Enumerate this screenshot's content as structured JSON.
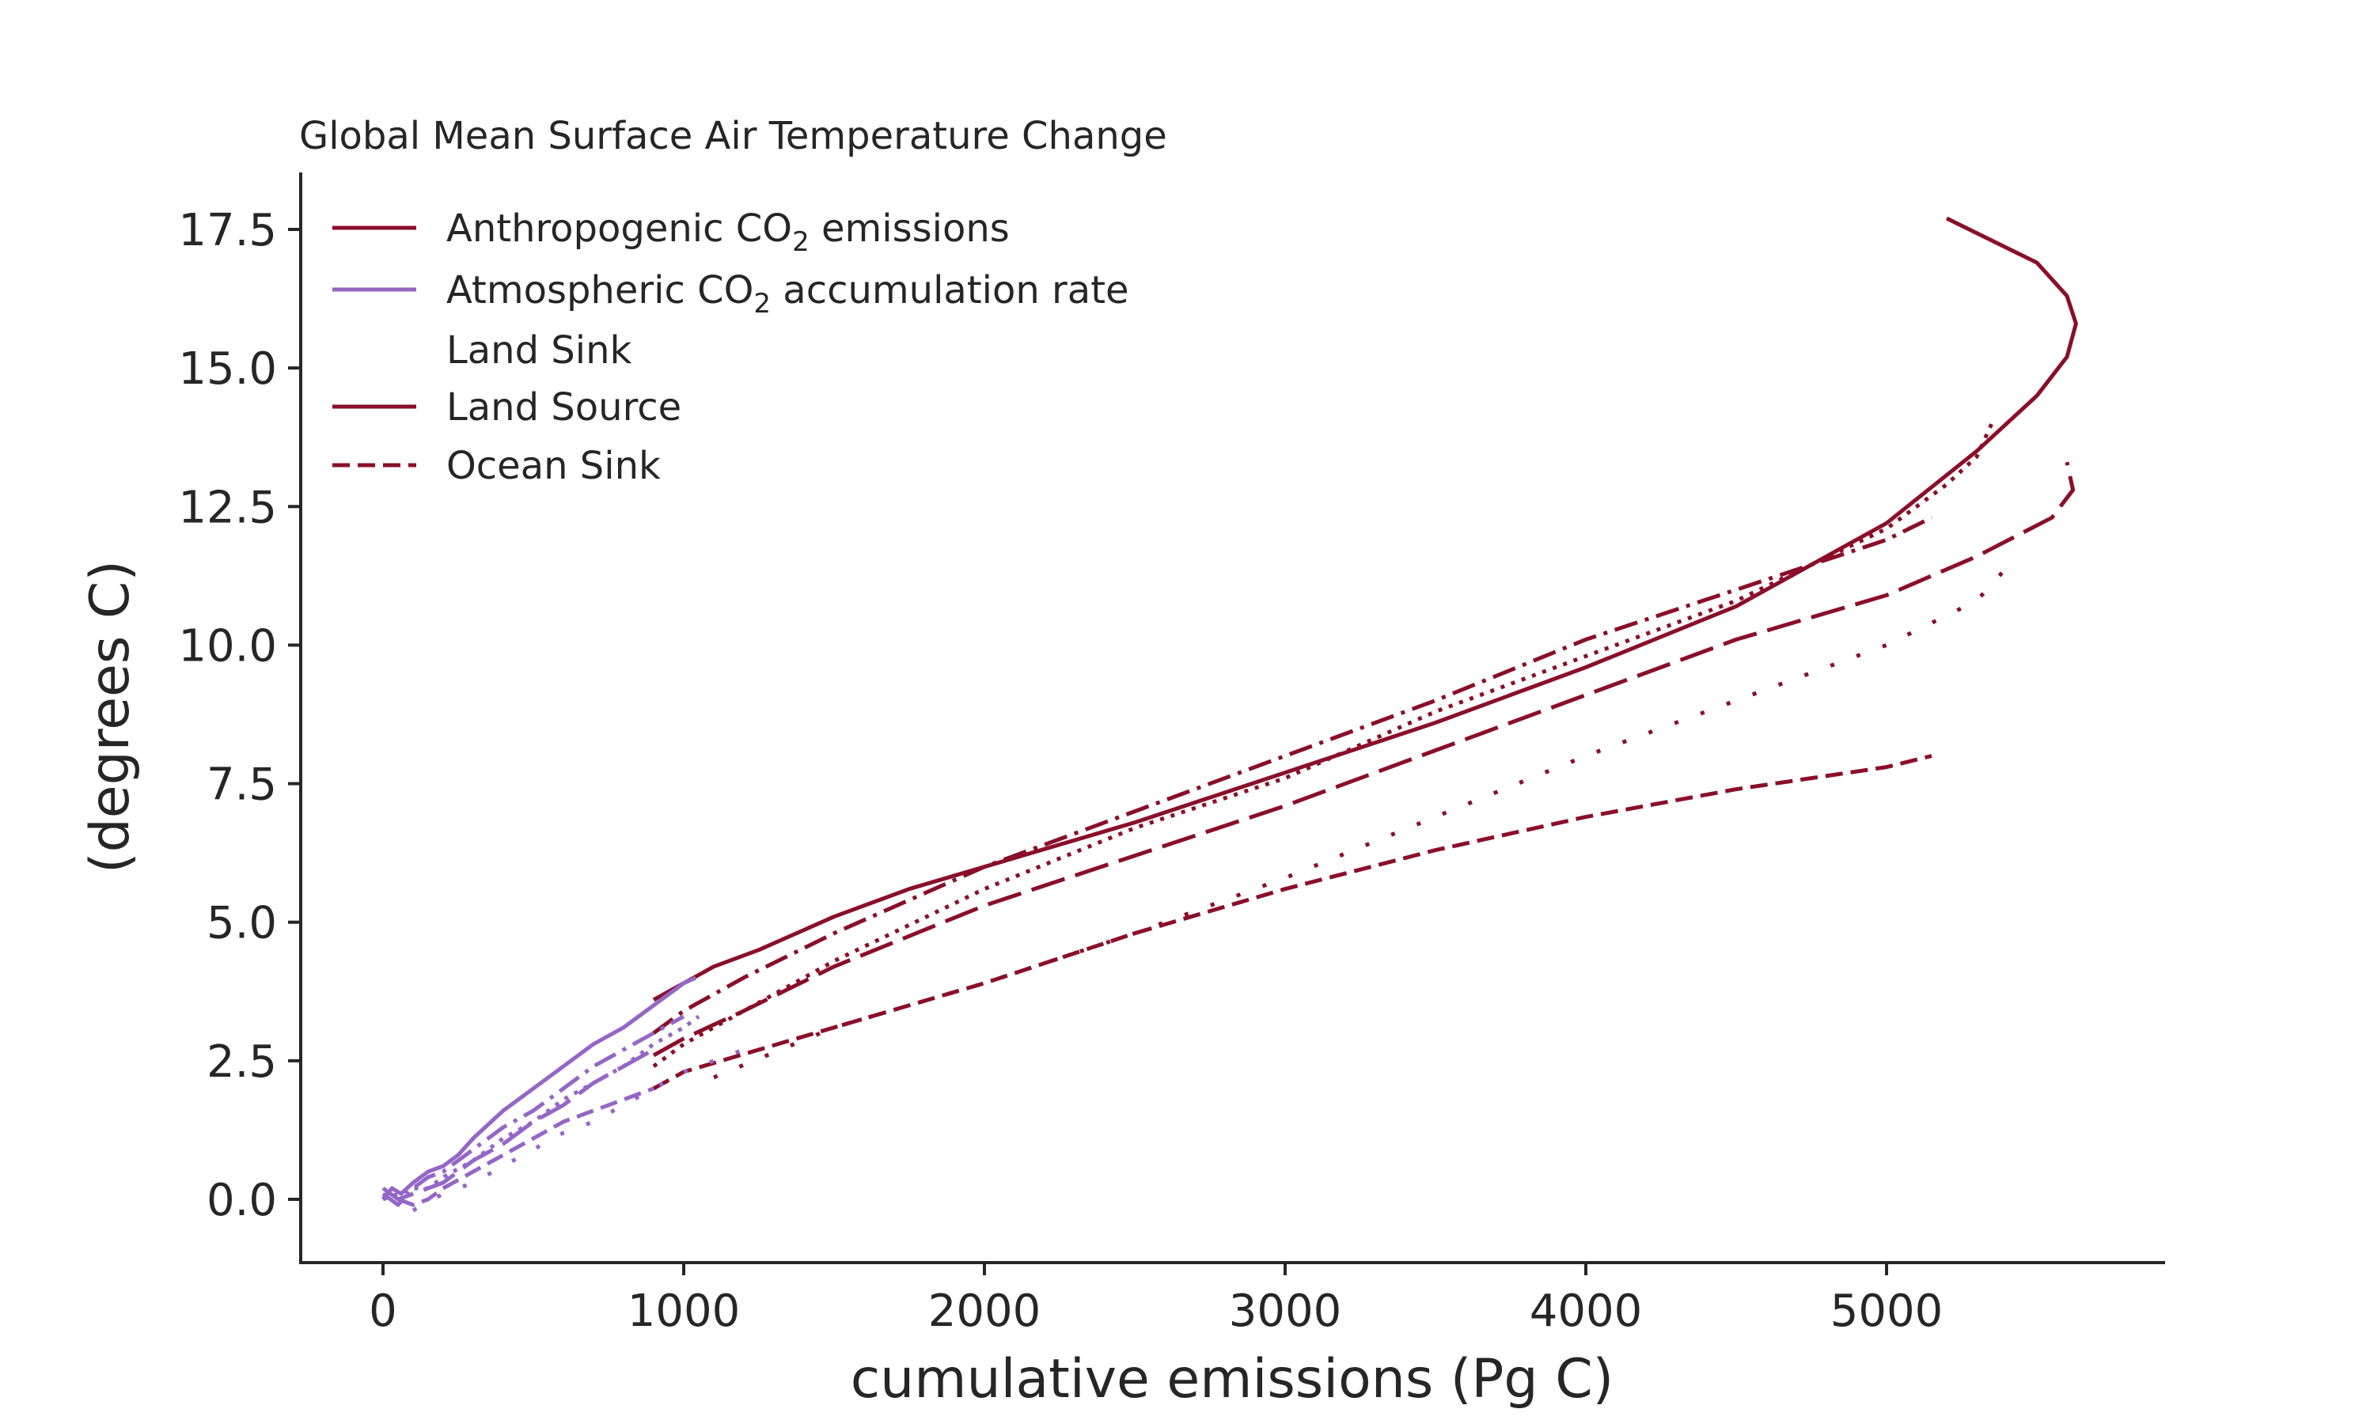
{
  "chart_data": {
    "type": "line",
    "title": "Global Mean Surface Air Temperature Change",
    "xlabel": "cumulative emissions (Pg C)",
    "ylabel": "(degrees C)",
    "xlim": [
      -280,
      5920
    ],
    "ylim": [
      -1.2,
      18.5
    ],
    "xticks": [
      0,
      1000,
      2000,
      3000,
      4000,
      5000
    ],
    "yticks": [
      0.0,
      2.5,
      5.0,
      7.5,
      10.0,
      12.5,
      15.0,
      17.5
    ],
    "xtick_labels": [
      "0",
      "1000",
      "2000",
      "3000",
      "4000",
      "5000"
    ],
    "ytick_labels": [
      "0.0",
      "2.5",
      "5.0",
      "7.5",
      "10.0",
      "12.5",
      "15.0",
      "17.5"
    ],
    "grid": false,
    "legend_position": "top-left",
    "legend": [
      {
        "label_main": "Anthropogenic CO",
        "label_sub": "2",
        "label_tail": " emissions",
        "color": "#8a0f2a",
        "dash": "solid"
      },
      {
        "label_main": "Atmospheric CO",
        "label_sub": "2",
        "label_tail": " accumulation rate",
        "color": "#9467c6",
        "dash": "solid"
      },
      {
        "label_main": "Land Sink",
        "label_sub": "",
        "label_tail": "",
        "color": "none",
        "dash": "none"
      },
      {
        "label_main": "Land Source",
        "label_sub": "",
        "label_tail": "",
        "color": "#8a0f2a",
        "dash": "solid"
      },
      {
        "label_main": "Ocean Sink",
        "label_sub": "",
        "label_tail": "",
        "color": "#8a0f2a",
        "dash": "dashed"
      }
    ],
    "series": [
      {
        "color": "#8a0f2a",
        "dash": "solid",
        "x": [
          900,
          1000,
          1100,
          1250,
          1500,
          1750,
          2000,
          2500,
          3000,
          3500,
          4000,
          4500,
          5000,
          5300,
          5500,
          5600,
          5630,
          5600,
          5500,
          5350,
          5200
        ],
        "y": [
          3.6,
          3.9,
          4.2,
          4.5,
          5.1,
          5.6,
          6.0,
          6.8,
          7.7,
          8.6,
          9.6,
          10.7,
          12.2,
          13.5,
          14.5,
          15.2,
          15.8,
          16.3,
          16.9,
          17.3,
          17.7
        ]
      },
      {
        "color": "#8a0f2a",
        "dash": "dashdot",
        "x": [
          900,
          1000,
          1200,
          1500,
          2000,
          2500,
          3000,
          3500,
          4000,
          4500,
          5000,
          5150
        ],
        "y": [
          3.0,
          3.4,
          4.0,
          4.8,
          6.0,
          7.0,
          8.0,
          9.0,
          10.1,
          11.0,
          11.9,
          12.3
        ]
      },
      {
        "color": "#8a0f2a",
        "dash": "dotted",
        "x": [
          900,
          1000,
          1200,
          1500,
          2000,
          2500,
          3000,
          3500,
          4000,
          4500,
          5000,
          5200,
          5300,
          5350
        ],
        "y": [
          2.4,
          2.8,
          3.4,
          4.3,
          5.6,
          6.7,
          7.6,
          8.8,
          9.8,
          10.8,
          12.1,
          12.9,
          13.4,
          14.0
        ]
      },
      {
        "color": "#8a0f2a",
        "dash": "longdash",
        "x": [
          900,
          1000,
          1200,
          1500,
          2000,
          2500,
          3000,
          3500,
          4000,
          4500,
          5000,
          5300,
          5550,
          5620,
          5600
        ],
        "y": [
          2.6,
          2.9,
          3.4,
          4.2,
          5.3,
          6.2,
          7.1,
          8.1,
          9.1,
          10.1,
          10.9,
          11.6,
          12.3,
          12.8,
          13.3
        ]
      },
      {
        "color": "#8a0f2a",
        "dash": "dashed",
        "x": [
          900,
          1000,
          1500,
          2000,
          2500,
          3000,
          3500,
          4000,
          4500,
          5000,
          5150
        ],
        "y": [
          2.0,
          2.3,
          3.1,
          3.9,
          4.8,
          5.6,
          6.3,
          6.9,
          7.4,
          7.8,
          8.0
        ]
      },
      {
        "color": "#8a0f2a",
        "dash": "sparsedot",
        "x": [
          1100,
          1500,
          2000,
          2500,
          3000,
          3500,
          4000,
          4500,
          5000,
          5300,
          5400
        ],
        "y": [
          2.2,
          3.1,
          3.9,
          4.8,
          5.8,
          6.9,
          8.0,
          9.0,
          10.0,
          10.8,
          11.4
        ]
      },
      {
        "color": "#9467c6",
        "dash": "solid",
        "x": [
          0,
          30,
          60,
          100,
          150,
          200,
          250,
          300,
          400,
          500,
          600,
          700,
          800,
          900,
          950,
          1000,
          1040
        ],
        "y": [
          0.0,
          0.2,
          0.1,
          0.3,
          0.5,
          0.6,
          0.8,
          1.1,
          1.6,
          2.0,
          2.4,
          2.8,
          3.1,
          3.5,
          3.7,
          3.9,
          4.0
        ]
      },
      {
        "color": "#9467c6",
        "dash": "dashdot",
        "x": [
          0,
          50,
          100,
          150,
          200,
          300,
          400,
          500,
          600,
          700,
          800,
          900,
          1000
        ],
        "y": [
          0.1,
          -0.1,
          0.2,
          0.4,
          0.5,
          0.9,
          1.3,
          1.6,
          2.0,
          2.4,
          2.7,
          3.0,
          3.3
        ]
      },
      {
        "color": "#9467c6",
        "dash": "dotted",
        "x": [
          0,
          50,
          100,
          150,
          200,
          300,
          400,
          500,
          600,
          700,
          800,
          900,
          1000,
          1050
        ],
        "y": [
          0.0,
          0.1,
          0.2,
          0.2,
          0.4,
          0.7,
          1.1,
          1.4,
          1.8,
          2.1,
          2.4,
          2.8,
          3.1,
          3.3
        ]
      },
      {
        "color": "#9467c6",
        "dash": "longdash",
        "x": [
          0,
          50,
          100,
          200,
          300,
          400,
          500,
          600,
          700,
          800,
          900
        ],
        "y": [
          0.2,
          0.0,
          0.1,
          0.3,
          0.7,
          1.0,
          1.4,
          1.7,
          2.1,
          2.4,
          2.7
        ]
      },
      {
        "color": "#9467c6",
        "dash": "dashed",
        "x": [
          50,
          100,
          150,
          200,
          300,
          400,
          500,
          600,
          700,
          800,
          900
        ],
        "y": [
          0.0,
          -0.1,
          0.0,
          0.2,
          0.5,
          0.8,
          1.1,
          1.4,
          1.6,
          1.8,
          2.0
        ]
      },
      {
        "color": "#9467c6",
        "dash": "sparsedot",
        "x": [
          100,
          200,
          300,
          400,
          500,
          600,
          700,
          800,
          900,
          1000,
          1100,
          1200
        ],
        "y": [
          -0.2,
          0.1,
          0.3,
          0.6,
          0.9,
          1.2,
          1.4,
          1.7,
          2.0,
          2.3,
          2.5,
          2.7
        ]
      }
    ]
  }
}
